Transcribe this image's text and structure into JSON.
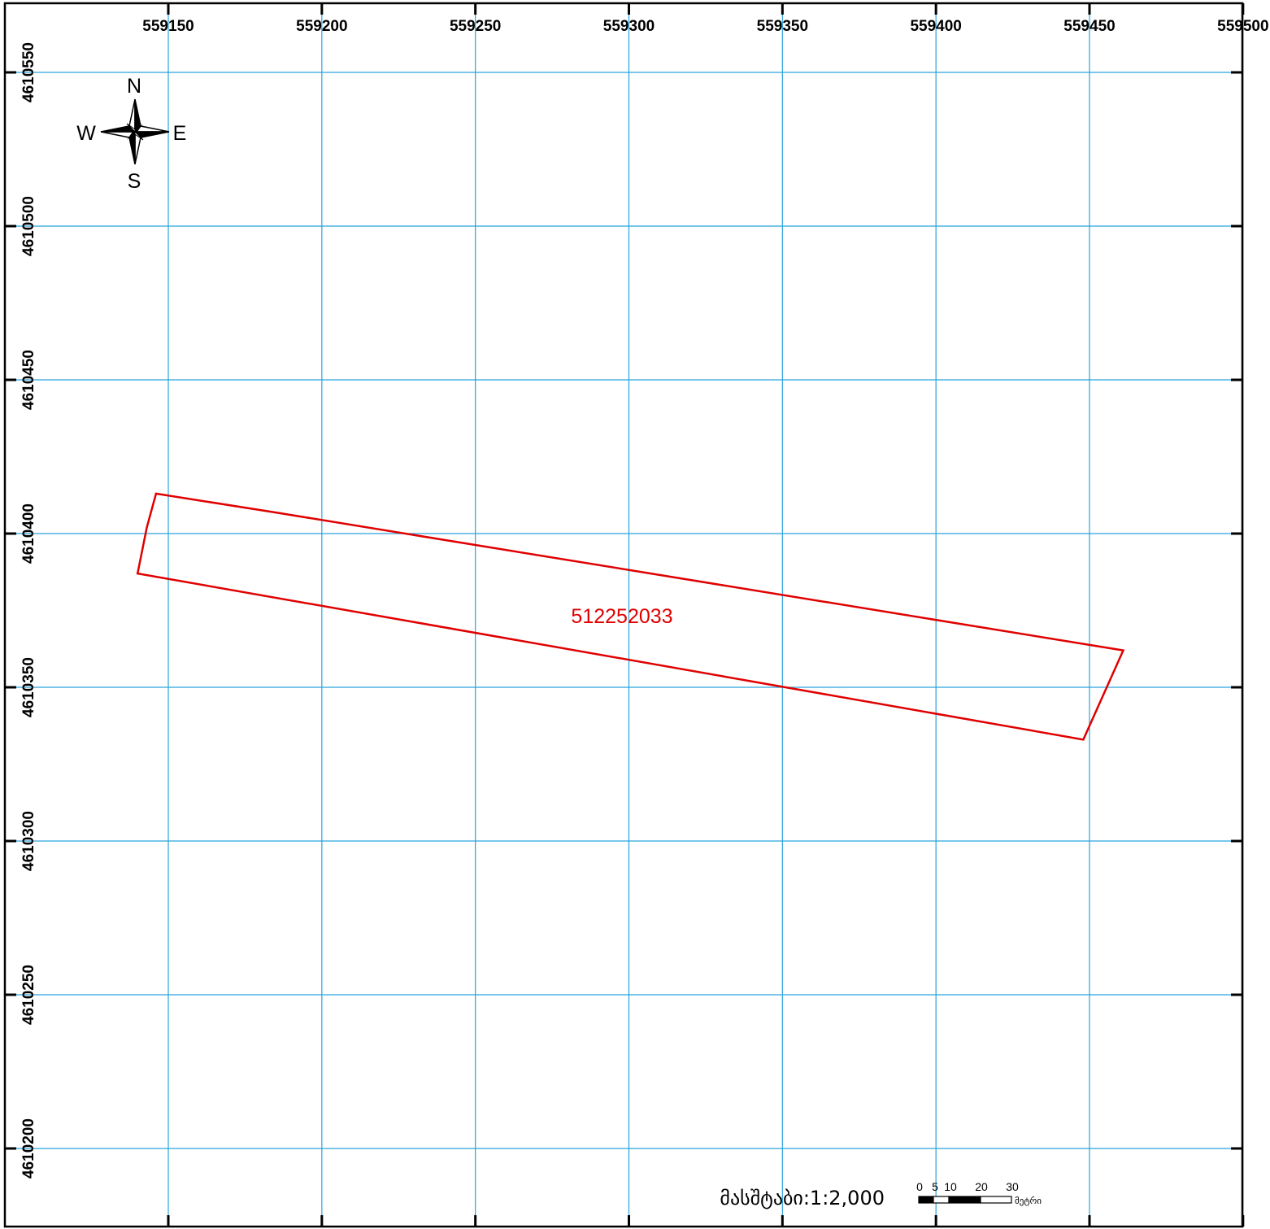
{
  "map": {
    "grid_color": "#29a3dd",
    "frame_color": "#000000",
    "x_labels": [
      "559150",
      "559200",
      "559250",
      "559300",
      "559350",
      "559400",
      "559450",
      "559500"
    ],
    "y_labels": [
      "4610550",
      "4610500",
      "4610450",
      "4610400",
      "4610350",
      "4610300",
      "4610250",
      "4610200"
    ],
    "parcel": {
      "id": "512252033",
      "color": "#e00000",
      "vertices": [
        [
          559146,
          4610413
        ],
        [
          559184,
          4610407
        ],
        [
          559461,
          4610362
        ],
        [
          559448,
          4610333
        ],
        [
          559140,
          4610387
        ],
        [
          559143,
          4610402
        ]
      ]
    },
    "compass": {
      "n": "N",
      "s": "S",
      "e": "E",
      "w": "W"
    },
    "scale_text": "მასშტაბი:1:2,000",
    "scalebar": {
      "ticks": [
        "0",
        "5",
        "10",
        "20",
        "30"
      ],
      "unit": "მეტრი"
    }
  }
}
